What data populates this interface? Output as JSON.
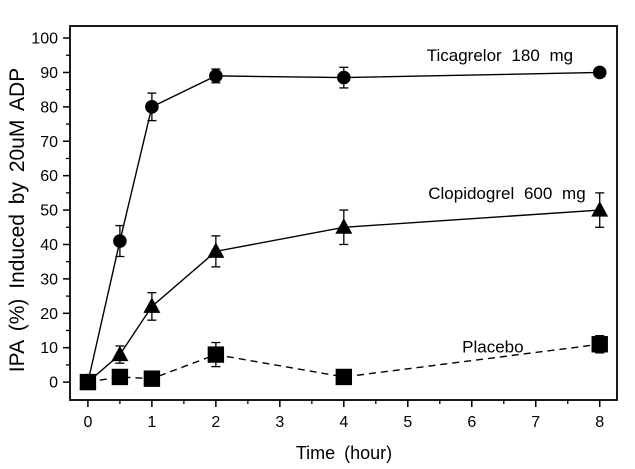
{
  "chart_data": {
    "type": "line",
    "title": "",
    "xlabel": "Time (hour)",
    "ylabel": "IPA (%) Induced by 20uM ADP",
    "xlim": [
      -0.28,
      8.27
    ],
    "ylim": [
      -5.2,
      103.5
    ],
    "x_major_ticks": [
      0,
      1,
      2,
      3,
      4,
      5,
      6,
      7,
      8
    ],
    "x_minor_step": 0.5,
    "y_major_ticks": [
      0,
      10,
      20,
      30,
      40,
      50,
      60,
      70,
      80,
      90,
      100
    ],
    "y_minor_step": 5,
    "grid": false,
    "legend": "inline-labels",
    "error_bars": true,
    "colors": {
      "foreground": "#000000",
      "background": "#ffffff"
    },
    "series": [
      {
        "id": "ticagrelor",
        "name": "Ticagrelor 180 mg",
        "marker": "circle",
        "line_style": "solid",
        "x": [
          0,
          0.5,
          1,
          2,
          4,
          8
        ],
        "y": [
          0,
          41,
          80,
          89,
          88.5,
          90
        ],
        "yerr": [
          0,
          4.5,
          4,
          2,
          3,
          1
        ],
        "label": {
          "x": 6.44,
          "y": 95
        }
      },
      {
        "id": "clopidogrel",
        "name": "Clopidogrel 600 mg",
        "marker": "triangle",
        "line_style": "solid",
        "x": [
          0,
          0.5,
          1,
          2,
          4,
          8
        ],
        "y": [
          0,
          8,
          22,
          38,
          45,
          50
        ],
        "yerr": [
          0,
          2.5,
          4,
          4.5,
          5,
          5
        ],
        "label": {
          "x": 6.55,
          "y": 55
        }
      },
      {
        "id": "placebo",
        "name": "Placebo",
        "marker": "square",
        "line_style": "dashed",
        "x": [
          0,
          0.5,
          1,
          2,
          4,
          8
        ],
        "y": [
          0,
          1.5,
          1,
          8,
          1.5,
          11
        ],
        "yerr": [
          0,
          2,
          1,
          3.5,
          1,
          2.5
        ],
        "label": {
          "x": 6.33,
          "y": 10.3
        }
      }
    ]
  }
}
